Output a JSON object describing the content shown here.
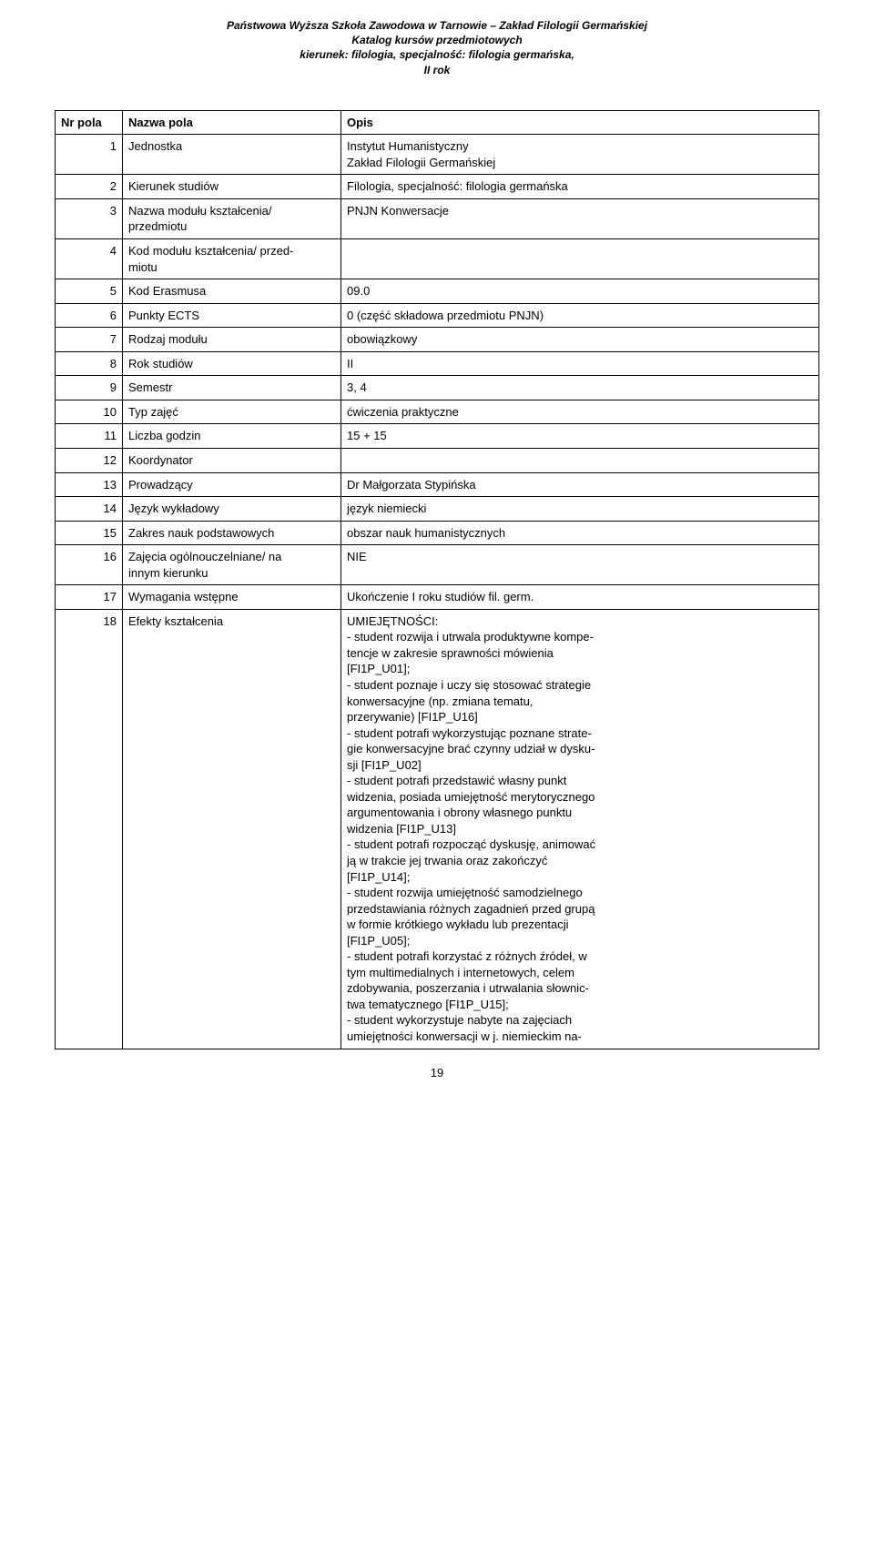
{
  "header": {
    "line1": "Państwowa Wyższa Szkoła Zawodowa w Tarnowie – Zakład Filologii Germańskiej",
    "line2": "Katalog kursów przedmiotowych",
    "line3": "kierunek: filologia, specjalność: filologia germańska,",
    "line4": "II rok"
  },
  "table": {
    "head": {
      "nr": "Nr pola",
      "label": "Nazwa pola",
      "opis": "Opis"
    },
    "rows": [
      {
        "nr": "1",
        "label": "Jednostka",
        "opis": "Instytut Humanistyczny\nZakład Filologii Germańskiej"
      },
      {
        "nr": "2",
        "label": "Kierunek studiów",
        "opis": "Filologia, specjalność: filologia germańska"
      },
      {
        "nr": "3",
        "label": "Nazwa modułu kształcenia/\nprzedmiotu",
        "opis": "PNJN Konwersacje"
      },
      {
        "nr": "4",
        "label": "Kod modułu kształcenia/ przed-\nmiotu",
        "opis": ""
      },
      {
        "nr": "5",
        "label": "Kod Erasmusa",
        "opis": "09.0"
      },
      {
        "nr": "6",
        "label": "Punkty ECTS",
        "opis": "0 (część składowa przedmiotu PNJN)"
      },
      {
        "nr": "7",
        "label": "Rodzaj modułu",
        "opis": "obowiązkowy"
      },
      {
        "nr": "8",
        "label": "Rok studiów",
        "opis": "II"
      },
      {
        "nr": "9",
        "label": "Semestr",
        "opis": "3, 4"
      },
      {
        "nr": "10",
        "label": "Typ zajęć",
        "opis": "ćwiczenia praktyczne"
      },
      {
        "nr": "11",
        "label": "Liczba godzin",
        "opis": "15 + 15"
      },
      {
        "nr": "12",
        "label": "Koordynator",
        "opis": ""
      },
      {
        "nr": "13",
        "label": "Prowadzący",
        "opis": "Dr Małgorzata Stypińska"
      },
      {
        "nr": "14",
        "label": "Język wykładowy",
        "opis": "język niemiecki"
      },
      {
        "nr": "15",
        "label": "Zakres nauk podstawowych",
        "opis": "obszar nauk humanistycznych"
      },
      {
        "nr": "16",
        "label": "Zajęcia ogólnouczelniane/ na\ninnym kierunku",
        "opis": "NIE"
      },
      {
        "nr": "17",
        "label": "Wymagania wstępne",
        "opis": "Ukończenie I roku studiów fil. germ."
      },
      {
        "nr": "18",
        "label": "Efekty kształcenia",
        "opis": "UMIEJĘTNOŚCI:\n- student rozwija i utrwala produktywne kompe-\ntencje w zakresie sprawności mówienia\n[FI1P_U01];\n- student poznaje i uczy się stosować strategie\nkonwersacyjne (np. zmiana tematu,\nprzerywanie) [FI1P_U16]\n- student potrafi wykorzystując poznane strate-\ngie konwersacyjne brać czynny udział w dysku-\nsji [FI1P_U02]\n- student potrafi przedstawić własny punkt\nwidzenia, posiada umiejętność merytorycznego\nargumentowania i obrony własnego punktu\nwidzenia [FI1P_U13]\n- student potrafi rozpocząć dyskusję, animować\nją w trakcie jej trwania oraz zakończyć\n[FI1P_U14];\n- student rozwija umiejętność samodzielnego\nprzedstawiania różnych zagadnień przed grupą\nw formie krótkiego wykładu lub prezentacji\n[FI1P_U05];\n- student potrafi korzystać z różnych źródeł, w\ntym multimedialnych i internetowych, celem\nzdobywania, poszerzania i utrwalania słownic-\ntwa tematycznego [FI1P_U15];\n- student wykorzystuje nabyte na zajęciach\numiejętności konwersacji w j. niemieckim na-"
      }
    ]
  },
  "page_number": "19"
}
